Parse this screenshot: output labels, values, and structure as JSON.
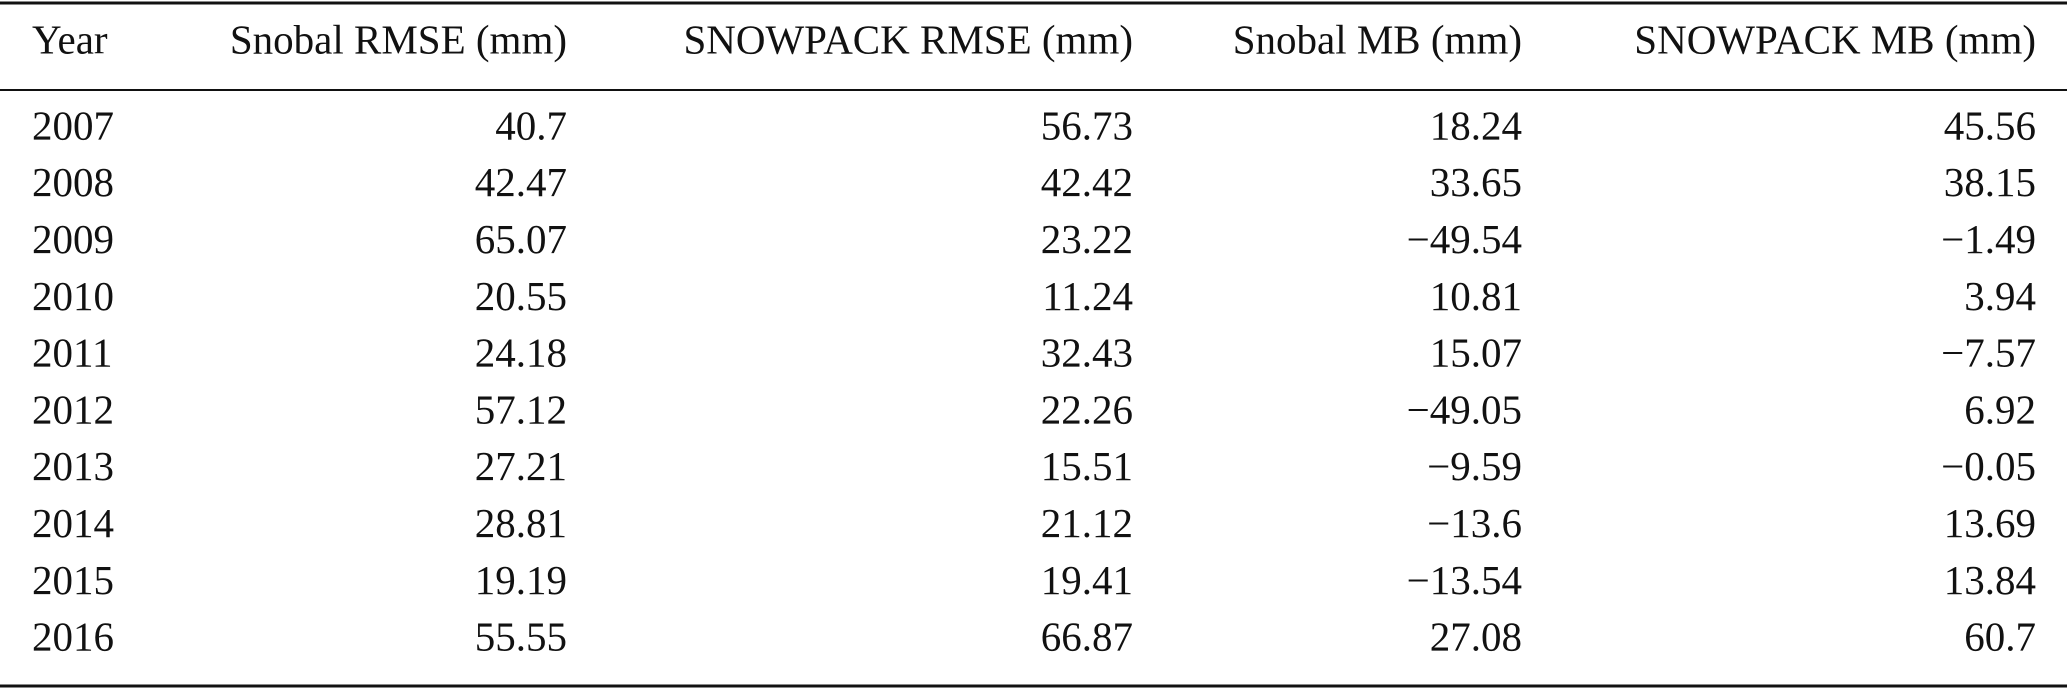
{
  "table": {
    "header": [
      "Year",
      "Snobal RMSE (mm)",
      "SNOWPACK RMSE (mm)",
      "Snobal MB (mm)",
      "SNOWPACK MB (mm)"
    ],
    "rows": [
      [
        "2007",
        "40.7",
        "56.73",
        "18.24",
        "45.56"
      ],
      [
        "2008",
        "42.47",
        "42.42",
        "33.65",
        "38.15"
      ],
      [
        "2009",
        "65.07",
        "23.22",
        "−49.54",
        "−1.49"
      ],
      [
        "2010",
        "20.55",
        "11.24",
        "10.81",
        "3.94"
      ],
      [
        "2011",
        "24.18",
        "32.43",
        "15.07",
        "−7.57"
      ],
      [
        "2012",
        "57.12",
        "22.26",
        "−49.05",
        "6.92"
      ],
      [
        "2013",
        "27.21",
        "15.51",
        "−9.59",
        "−0.05"
      ],
      [
        "2014",
        "28.81",
        "21.12",
        "−13.6",
        "13.69"
      ],
      [
        "2015",
        "19.19",
        "19.41",
        "−13.54",
        "13.84"
      ],
      [
        "2016",
        "55.55",
        "66.87",
        "27.08",
        "60.7"
      ]
    ]
  }
}
